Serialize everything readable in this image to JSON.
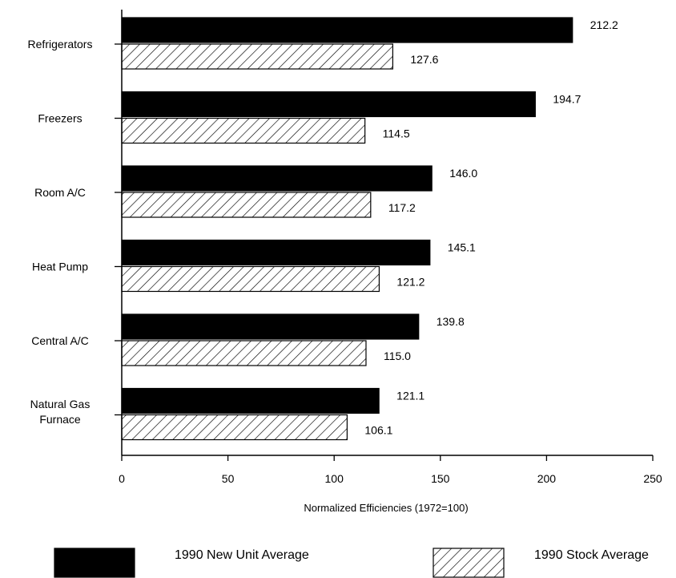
{
  "chart_data": {
    "type": "bar",
    "orientation": "horizontal",
    "categories": [
      [
        "Refrigerators"
      ],
      [
        "Freezers"
      ],
      [
        "Room A/C"
      ],
      [
        "Heat Pump"
      ],
      [
        "Central A/C"
      ],
      [
        "Natural Gas",
        "Furnace"
      ]
    ],
    "series": [
      {
        "name": "1990 New Unit Average",
        "values": [
          212.2,
          194.7,
          146.0,
          145.1,
          139.8,
          121.1
        ],
        "labels": [
          "212.2",
          "194.7",
          "146.0",
          "145.1",
          "139.8",
          "121.1"
        ],
        "fill": "solid",
        "color": "#000000"
      },
      {
        "name": "1990 Stock Average",
        "values": [
          127.6,
          114.5,
          117.2,
          121.2,
          115.0,
          106.1
        ],
        "labels": [
          "127.6",
          "114.5",
          "117.2",
          "121.2",
          "115.0",
          "106.1"
        ],
        "fill": "hatched",
        "color": "#000000"
      }
    ],
    "title": "",
    "xlabel": "Normalized Efficiencies (1972=100)",
    "ylabel": "",
    "xlim": [
      0,
      250
    ],
    "xticks": [
      0,
      50,
      100,
      150,
      200,
      250
    ],
    "grid": false,
    "legend_position": "bottom"
  }
}
